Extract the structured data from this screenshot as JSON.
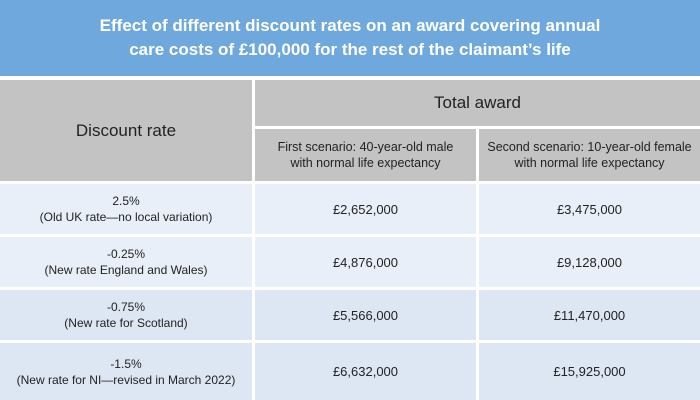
{
  "title": "Effect of different discount rates on an award covering annual care costs of £100,000 for the rest of the claimant’s life",
  "header": {
    "discount_rate": "Discount rate",
    "total_award": "Total award",
    "scenario1": "First scenario: 40-year-old male with normal life expectancy",
    "scenario2": "Second scenario: 10-year-old female with normal life expectancy"
  },
  "rows": [
    {
      "rate": "2.5%",
      "note": "(Old UK rate—no local variation)",
      "s1": "£2,652,000",
      "s2": "£3,475,000"
    },
    {
      "rate": "-0.25%",
      "note": "(New rate England and Wales)",
      "s1": "£4,876,000",
      "s2": "£9,128,000"
    },
    {
      "rate": "-0.75%",
      "note": "(New rate for Scotland)",
      "s1": "£5,566,000",
      "s2": "£11,470,000"
    },
    {
      "rate": "-1.5%",
      "note": "(New rate for NI—revised in March 2022)",
      "s1": "£6,632,000",
      "s2": "£15,925,000"
    }
  ],
  "colors": {
    "title_bg": "#6fa8dc",
    "header_bg": "#c3c3c3",
    "row_light": "#e9eff8",
    "row_dark": "#dde7f4"
  }
}
